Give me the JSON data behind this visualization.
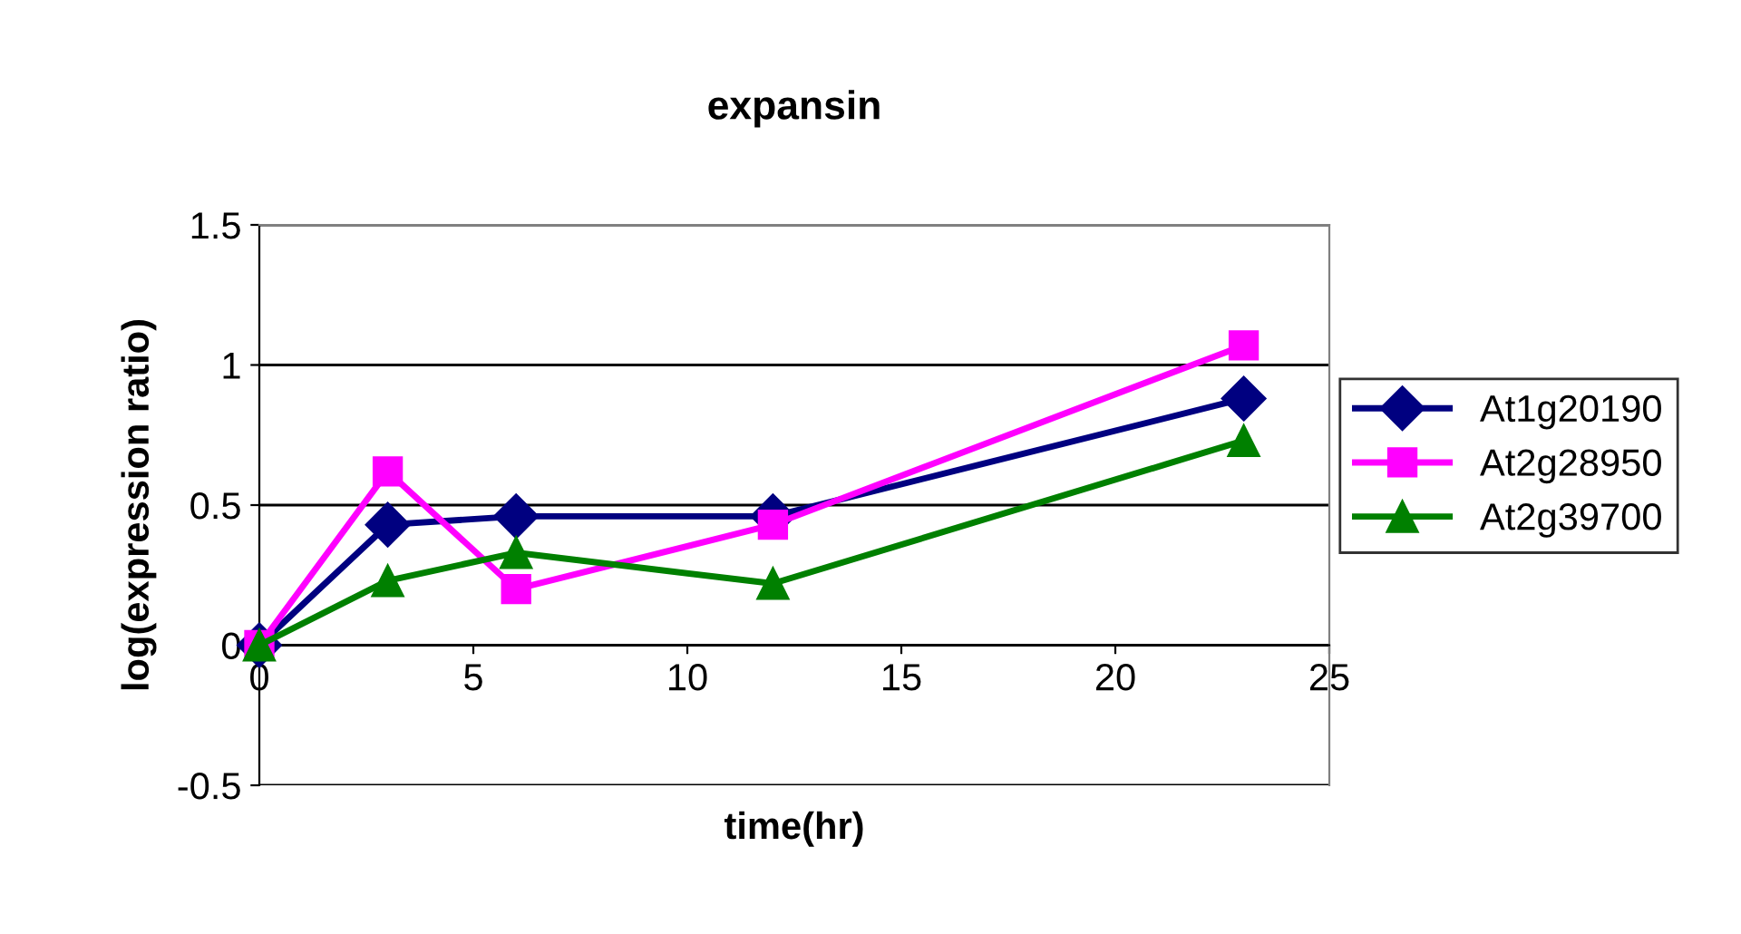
{
  "chart_data": {
    "type": "line",
    "title": "expansin",
    "xlabel": "time(hr)",
    "ylabel": "log(expression ratio)",
    "x": [
      0,
      3,
      6,
      12,
      23
    ],
    "series": [
      {
        "name": "At1g20190",
        "color": "#000080",
        "marker": "diamond",
        "values": [
          0,
          0.43,
          0.46,
          0.46,
          0.88
        ]
      },
      {
        "name": "At2g28950",
        "color": "#ff00ff",
        "marker": "square",
        "values": [
          0,
          0.62,
          0.2,
          0.43,
          1.07
        ]
      },
      {
        "name": "At2g39700",
        "color": "#008000",
        "marker": "triangle",
        "values": [
          0,
          0.23,
          0.33,
          0.22,
          0.73
        ]
      }
    ],
    "xlim": [
      0,
      25
    ],
    "xticks": [
      0,
      5,
      10,
      15,
      20,
      25
    ],
    "ylim": [
      -0.5,
      1.5
    ],
    "yticks": [
      -0.5,
      0,
      0.5,
      1,
      1.5
    ],
    "grid": "y",
    "legend": "right",
    "line_style": "solid"
  }
}
